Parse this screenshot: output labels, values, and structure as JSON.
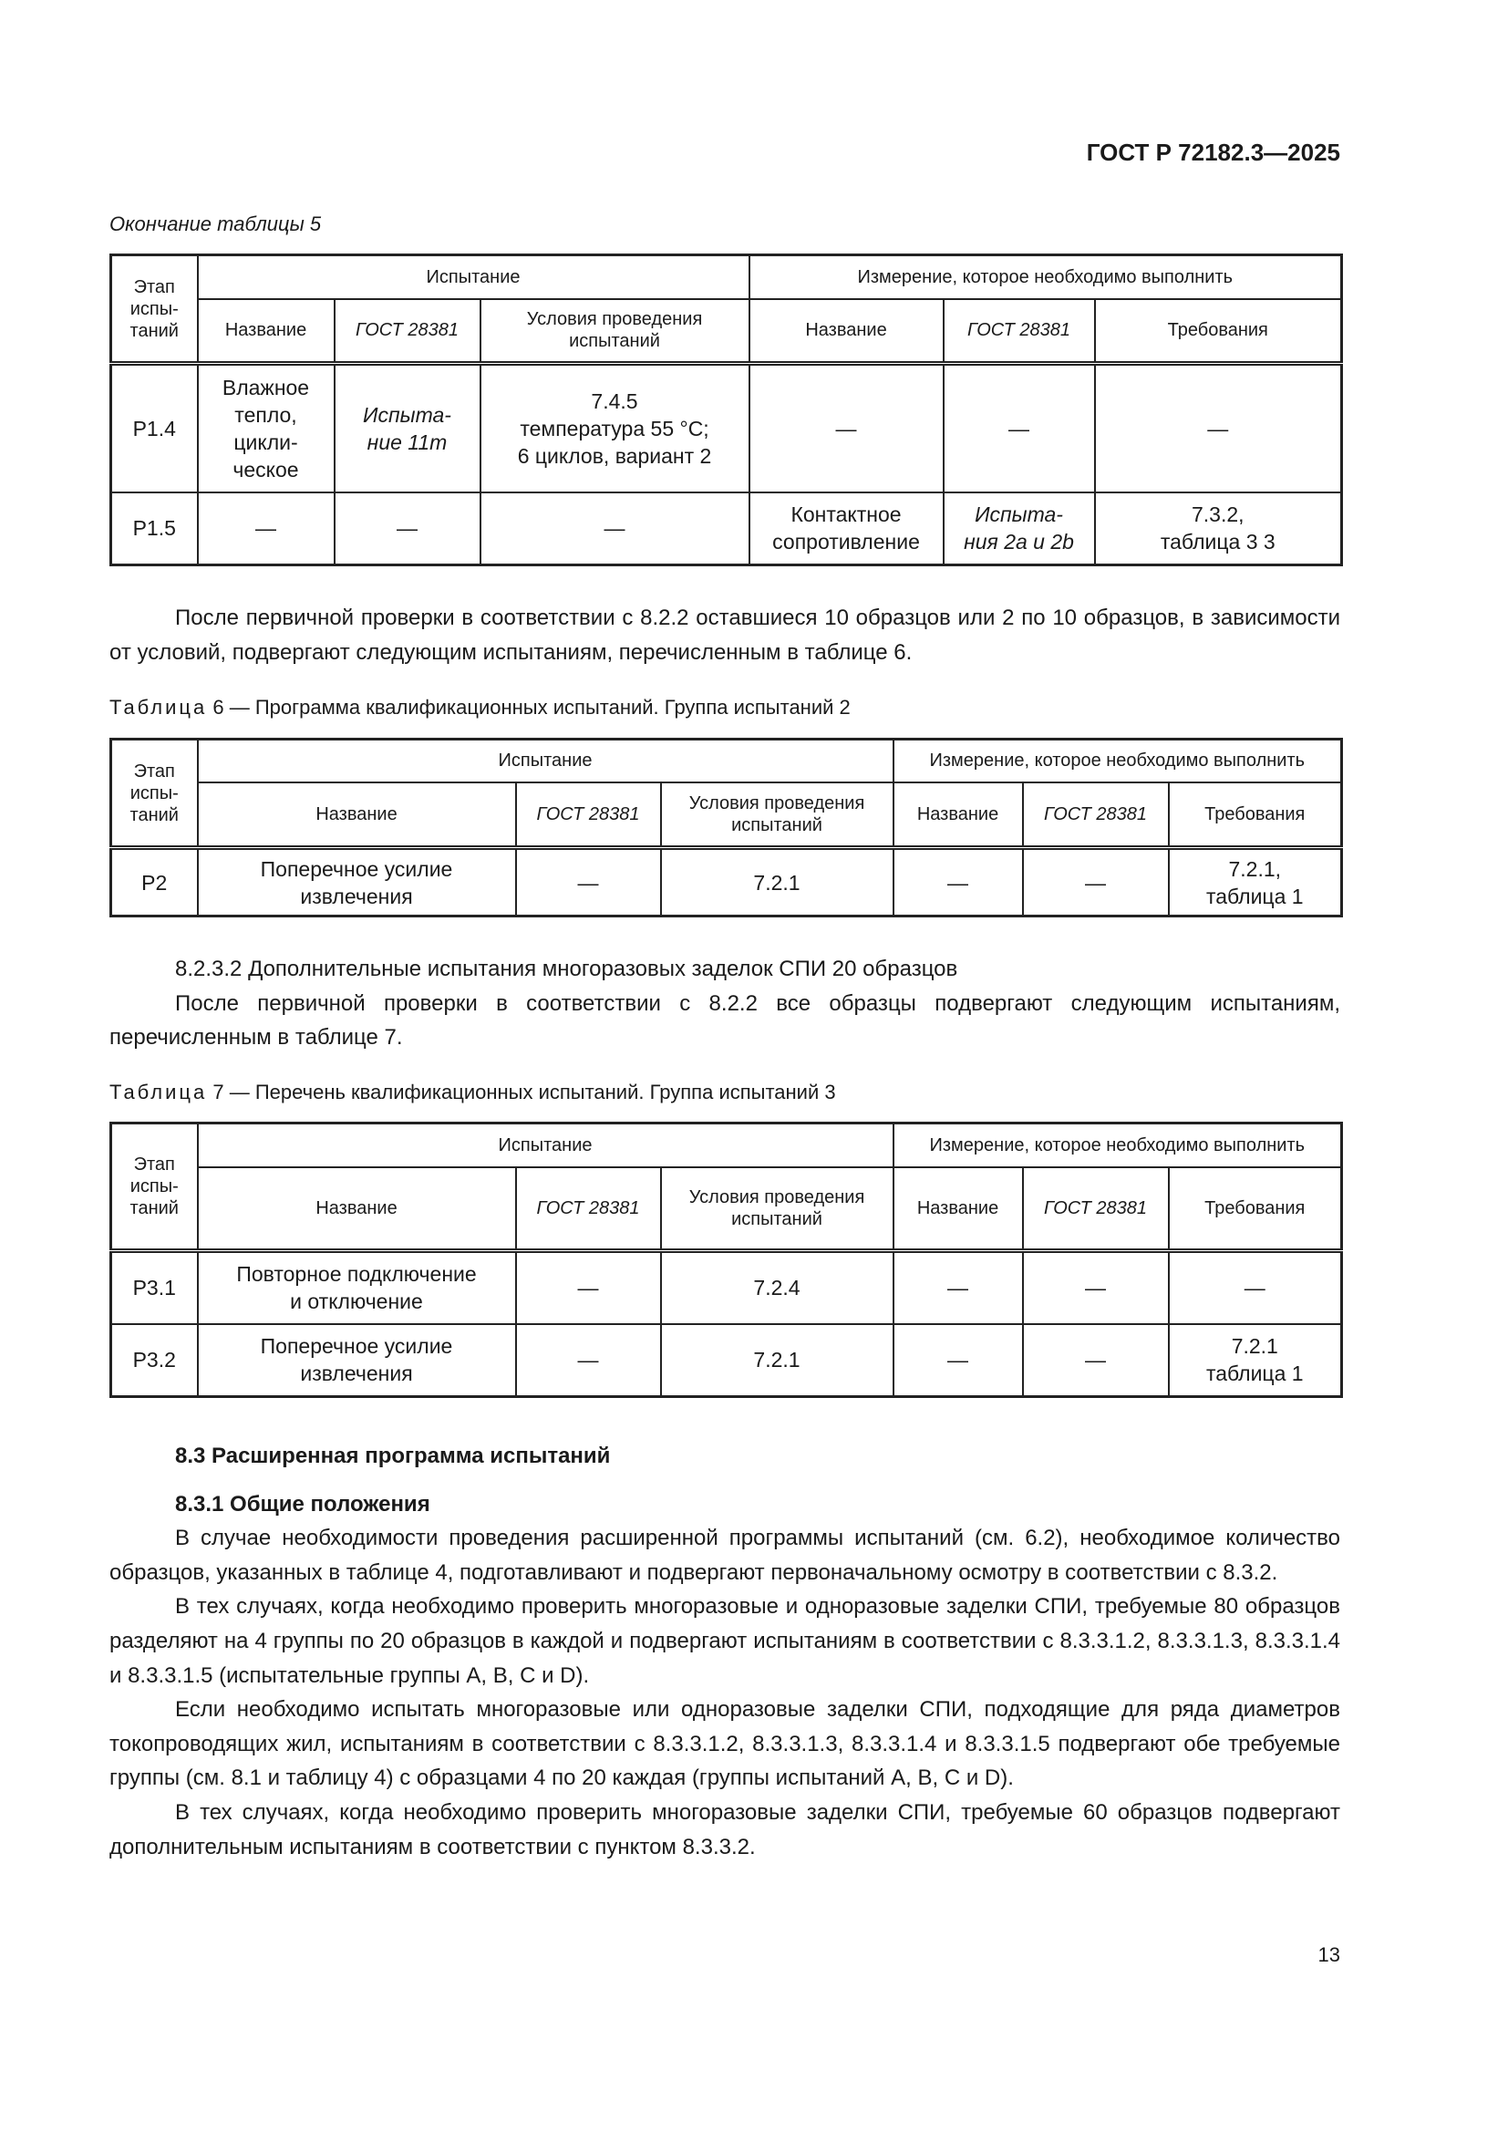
{
  "header": {
    "doc_code": "ГОСТ Р 72182.3—2025"
  },
  "table5": {
    "caption": "Окончание таблицы 5",
    "stage_header": "Этап\nиспы-\nтаний",
    "group_test": "Испытание",
    "group_measure": "Измерение, которое необходимо выполнить",
    "sub_headers": [
      "Название",
      "ГОСТ 28381",
      "Условия проведения\nиспытаний",
      "Название",
      "ГОСТ 28381",
      "Требования"
    ],
    "rows": [
      [
        "Р1.4",
        "Влажное\nтепло,\nцикли-\nческое",
        "Испыта-\nние 11m",
        "7.4.5\nтемпература 55 °С;\n6 циклов, вариант 2",
        "—",
        "—",
        "—"
      ],
      [
        "Р1.5",
        "—",
        "—",
        "—",
        "Контактное\nсопротивление",
        "Испыта-\nния 2a и 2b",
        "7.3.2,\nтаблица 3 3"
      ]
    ]
  },
  "para1": "После первичной проверки в соответствии с 8.2.2 оставшиеся 10 образцов или 2 по 10 образцов, в зависимости от условий, подвергают следующим испытаниям, перечисленным в таблице 6.",
  "table6": {
    "caption_label": "Таблица",
    "caption_text": "6 — Программа квалификационных испытаний. Группа испытаний 2",
    "stage_header": "Этап\nиспы-\nтаний",
    "group_test": "Испытание",
    "group_measure": "Измерение, которое необходимо выполнить",
    "sub_headers": [
      "Название",
      "ГОСТ 28381",
      "Условия проведения\nиспытаний",
      "Название",
      "ГОСТ 28381",
      "Требования"
    ],
    "rows": [
      [
        "Р2",
        "Поперечное усилие\nизвлечения",
        "—",
        "7.2.1",
        "—",
        "—",
        "7.2.1,\nтаблица 1"
      ]
    ]
  },
  "section_8232": {
    "title_line": "8.2.3.2 Дополнительные испытания многоразовых заделок СПИ 20 образцов",
    "text": "После первичной проверки в соответствии с 8.2.2 все образцы подвергают следующим испытаниям, перечисленным в таблице 7."
  },
  "table7": {
    "caption_label": "Таблица",
    "caption_text": "7 — Перечень квалификационных испытаний. Группа испытаний 3",
    "stage_header": "Этап\nиспы-\nтаний",
    "group_test": "Испытание",
    "group_measure": "Измерение, которое необходимо выполнить",
    "sub_headers": [
      "Название",
      "ГОСТ 28381",
      "Условия проведения\nиспытаний",
      "Название",
      "ГОСТ 28381",
      "Требования"
    ],
    "rows": [
      [
        "Р3.1",
        "Повторное подключение\nи отключение",
        "—",
        "7.2.4",
        "—",
        "—",
        "—"
      ],
      [
        "Р3.2",
        "Поперечное усилие\nизвлечения",
        "—",
        "7.2.1",
        "—",
        "—",
        "7.2.1\nтаблица 1"
      ]
    ]
  },
  "section_83": {
    "heading": "8.3 Расширенная программа испытаний",
    "sub_heading": "8.3.1 Общие положения",
    "paragraphs": [
      "В случае необходимости проведения расширенной программы испытаний (см. 6.2), необходимое количество образцов, указанных в таблице 4, подготавливают и подвергают первоначальному осмотру в соответствии с 8.3.2.",
      "В тех случаях, когда необходимо проверить многоразовые и одноразовые заделки СПИ, требуемые 80 образцов разделяют на 4 группы по 20 образцов в каждой и подвергают испытаниям в соответствии с 8.3.3.1.2, 8.3.3.1.3, 8.3.3.1.4 и 8.3.3.1.5 (испытательные группы А, В, С и D).",
      "Если необходимо испытать многоразовые или одноразовые заделки СПИ, подходящие для ряда диаметров токопроводящих жил, испытаниям в соответствии с 8.3.3.1.2, 8.3.3.1.3, 8.3.3.1.4 и 8.3.3.1.5 подвергают обе требуемые группы (см. 8.1 и таблицу 4) с образцами 4 по 20 каждая (группы испытаний А, В, С и D).",
      "В тех случаях, когда необходимо проверить многоразовые заделки СПИ, требуемые 60 образцов подвергают дополнительным испытаниям в соответствии с пунктом 8.3.3.2."
    ]
  },
  "page_number": "13"
}
